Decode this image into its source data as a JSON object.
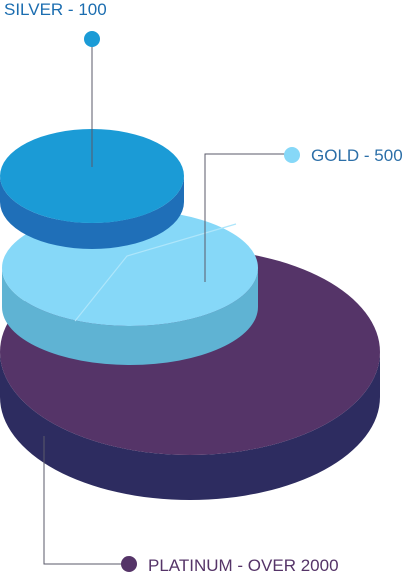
{
  "diagram": {
    "tiers": [
      {
        "id": "platinum",
        "label": "PLATINUM - OVER 2000",
        "top_color": "#553468",
        "side_color": "#2d2c60",
        "text_color": "#553468"
      },
      {
        "id": "gold",
        "label": "GOLD - 500",
        "top_color": "#86d8f8",
        "side_color": "#5fb3d3",
        "text_color": "#2c6fa8"
      },
      {
        "id": "silver",
        "label": "SILVER - 100",
        "top_color": "#1b9bd6",
        "side_color": "#1f6fb8",
        "text_color": "#1b6db0"
      }
    ],
    "connector_color": "#5a5a6a"
  }
}
